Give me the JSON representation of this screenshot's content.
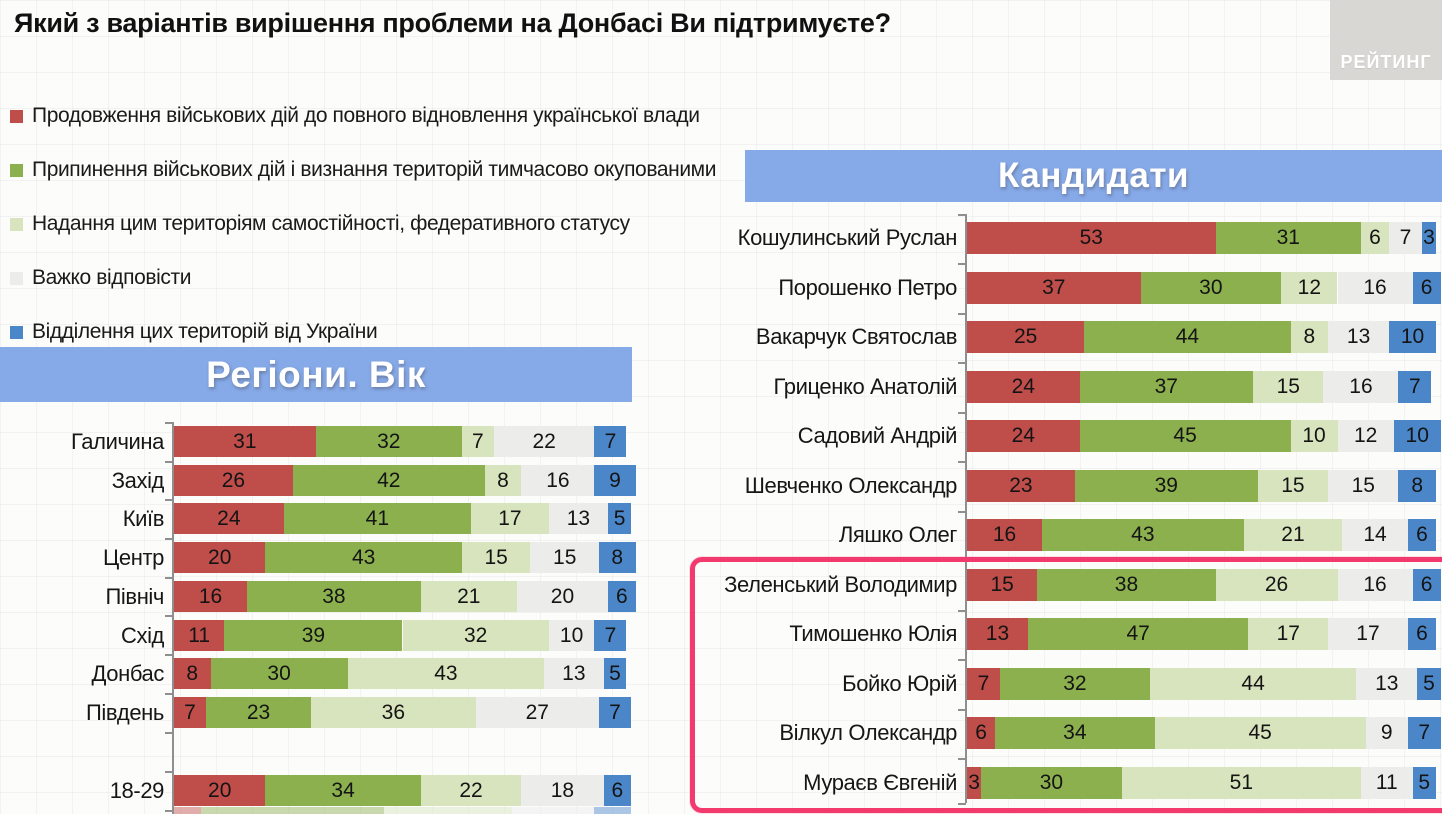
{
  "title": "Який з варіантів вирішення проблеми на Донбасі Ви підтримуєте?",
  "logo_text": "РЕЙТИНГ",
  "legend": [
    {
      "label": "Продовження військових дій до повного відновлення української влади",
      "color": "#bf4d4a"
    },
    {
      "label": "Припинення військових дій і визнання територій тимчасово окупованими",
      "color": "#8cb04e"
    },
    {
      "label": "Надання цим територіям самостійності, федеративного статусу",
      "color": "#d8e4bd"
    },
    {
      "label": "Важко відповісти",
      "color": "#ececea"
    },
    {
      "label": "Відділення цих територій від України",
      "color": "#4a86c8"
    }
  ],
  "colors": {
    "segment_colors": [
      "#bf4d4a",
      "#8cb04e",
      "#d8e4bd",
      "#ececea",
      "#4a86c8"
    ],
    "banner_bg": "#86a9e8",
    "banner_text": "#ffffff",
    "highlight_border": "#f23a6e",
    "logo_bg": "#d9d7d4",
    "logo_text": "#ffffff"
  },
  "chart_data": [
    {
      "type": "bar",
      "variant": "horizontal-stacked-percent",
      "title": "Регіони. Вік",
      "legend_position": "top-left",
      "series_names": [
        "Продовження військових дій до повного відновлення української влади",
        "Припинення військових дій і визнання територій тимчасово окупованими",
        "Надання цим територіям самостійності, федеративного статусу",
        "Важко відповісти",
        "Відділення цих територій від України"
      ],
      "categories": [
        "Галичина",
        "Захід",
        "Київ",
        "Центр",
        "Північ",
        "Схід",
        "Донбас",
        "Південь",
        "18-29"
      ],
      "rows": [
        [
          31,
          32,
          7,
          22,
          7
        ],
        [
          26,
          42,
          8,
          16,
          9
        ],
        [
          24,
          41,
          17,
          13,
          5
        ],
        [
          20,
          43,
          15,
          15,
          8
        ],
        [
          16,
          38,
          21,
          20,
          6
        ],
        [
          11,
          39,
          32,
          10,
          7
        ],
        [
          8,
          30,
          43,
          13,
          5
        ],
        [
          7,
          23,
          36,
          27,
          7
        ],
        [
          20,
          34,
          22,
          18,
          6
        ]
      ],
      "xlim": [
        0,
        100
      ],
      "next_row_cut_off_at_bottom": true
    },
    {
      "type": "bar",
      "variant": "horizontal-stacked-percent",
      "title": "Кандидати",
      "series_names": [
        "Продовження військових дій до повного відновлення української влади",
        "Припинення військових дій і визнання територій тимчасово окупованими",
        "Надання цим територіям самостійності, федеративного статусу",
        "Важко відповісти",
        "Відділення цих територій від України"
      ],
      "categories": [
        "Кошулинський Руслан",
        "Порошенко Петро",
        "Вакарчук Святослав",
        "Гриценко Анатолій",
        "Садовий Андрій",
        "Шевченко Олександр",
        "Ляшко Олег",
        "Зеленський Володимир",
        "Тимошенко Юлія",
        "Бойко Юрій",
        "Вілкул Олександр",
        "Мураєв Євгеній"
      ],
      "rows": [
        [
          53,
          31,
          6,
          7,
          3
        ],
        [
          37,
          30,
          12,
          16,
          6
        ],
        [
          25,
          44,
          8,
          13,
          10
        ],
        [
          24,
          37,
          15,
          16,
          7
        ],
        [
          24,
          45,
          10,
          12,
          10
        ],
        [
          23,
          39,
          15,
          15,
          8
        ],
        [
          16,
          43,
          21,
          14,
          6
        ],
        [
          15,
          38,
          26,
          16,
          6
        ],
        [
          13,
          47,
          17,
          17,
          6
        ],
        [
          7,
          32,
          44,
          13,
          5
        ],
        [
          6,
          34,
          45,
          9,
          7
        ],
        [
          3,
          30,
          51,
          11,
          5
        ]
      ],
      "xlim": [
        0,
        100
      ],
      "highlighted_categories": [
        "Зеленський Володимир",
        "Тимошенко Юлія",
        "Бойко Юрій",
        "Вілкул Олександр",
        "Мураєв Євгеній"
      ]
    }
  ]
}
